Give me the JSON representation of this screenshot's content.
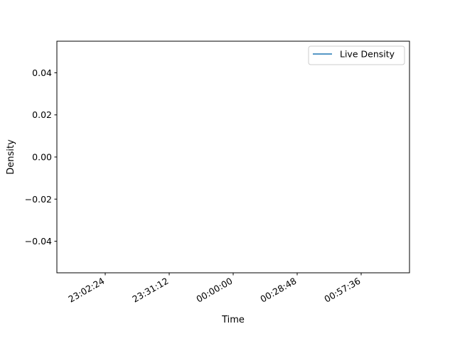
{
  "chart_data": {
    "type": "line",
    "title": "",
    "xlabel": "Time",
    "ylabel": "Density",
    "x_ticks": [
      "23:02:24",
      "23:31:12",
      "00:00:00",
      "00:28:48",
      "00:57:36"
    ],
    "y_ticks": [
      "0.04",
      "0.02",
      "0.00",
      "−0.02",
      "−0.04"
    ],
    "y_tick_values": [
      0.04,
      0.02,
      0.0,
      -0.02,
      -0.04
    ],
    "ylim": [
      -0.055,
      0.055
    ],
    "series": [
      {
        "name": "Live Density",
        "color": "#1f77b4",
        "x": [],
        "y": []
      }
    ],
    "legend_position": "upper right",
    "grid": false
  }
}
